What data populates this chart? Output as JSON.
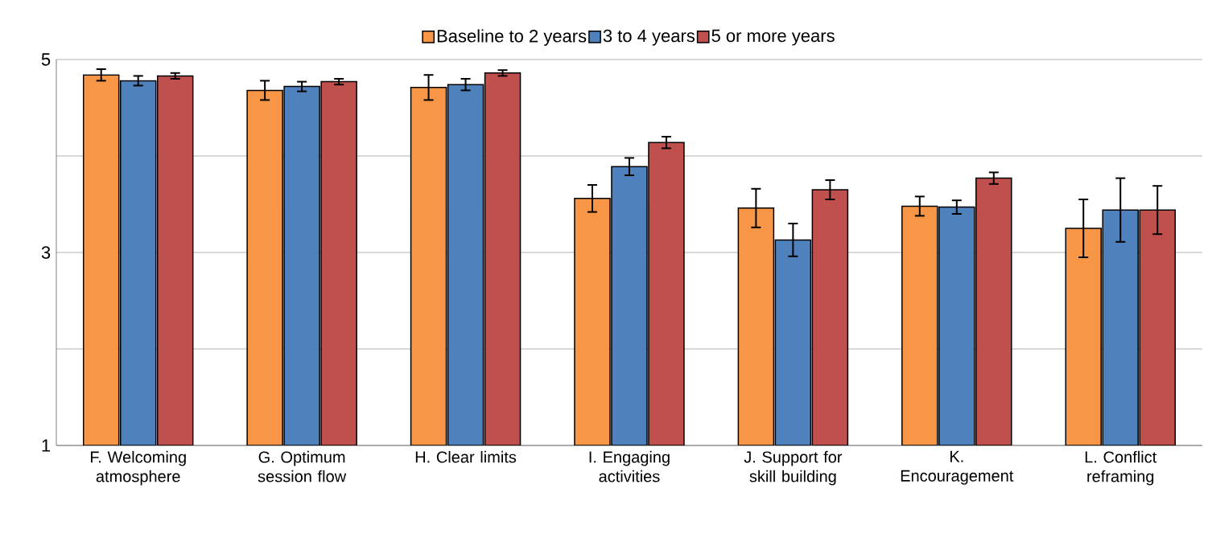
{
  "chart_data": {
    "type": "bar",
    "categories": [
      "F. Welcoming atmosphere",
      "G. Optimum session flow",
      "H. Clear limits",
      "I. Engaging activities",
      "J. Support for skill building",
      "K. Encouragement",
      "L. Conflict reframing"
    ],
    "series": [
      {
        "name": "Baseline to 2 years",
        "color": "#f79646",
        "values": [
          4.84,
          4.68,
          4.71,
          3.56,
          3.46,
          3.48,
          3.25
        ],
        "errors": [
          0.06,
          0.1,
          0.13,
          0.14,
          0.2,
          0.1,
          0.3
        ]
      },
      {
        "name": "3 to 4 years",
        "color": "#4f81bd",
        "values": [
          4.78,
          4.72,
          4.74,
          3.89,
          3.13,
          3.47,
          3.44
        ],
        "errors": [
          0.05,
          0.05,
          0.06,
          0.09,
          0.17,
          0.07,
          0.33
        ]
      },
      {
        "name": "5 or more years",
        "color": "#c0504d",
        "values": [
          4.83,
          4.77,
          4.86,
          4.14,
          3.65,
          3.77,
          3.44
        ],
        "errors": [
          0.03,
          0.03,
          0.03,
          0.06,
          0.1,
          0.06,
          0.25
        ]
      }
    ],
    "ylim": [
      1,
      5
    ],
    "yticks": [
      1,
      {
        "value": 2,
        "label": null
      },
      3,
      {
        "value": 4,
        "label": null
      },
      5
    ],
    "grid": "y",
    "legend": "top"
  }
}
